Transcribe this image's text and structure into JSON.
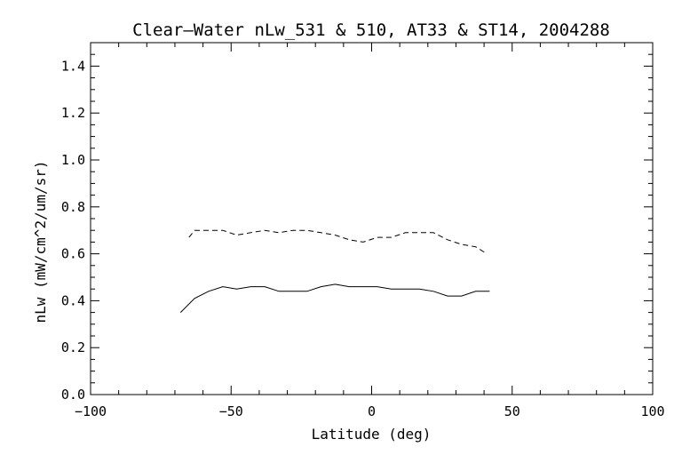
{
  "chart_data": {
    "type": "line",
    "title": "Clear–Water nLw_531 & 510, AT33 & ST14, 2004288",
    "xlabel": "Latitude (deg)",
    "ylabel": "nLw (mW/cm^2/um/sr)",
    "xlim": [
      -100,
      100
    ],
    "ylim": [
      0.0,
      1.5
    ],
    "x_ticks": [
      "−100",
      "−50",
      "0",
      "50",
      "100"
    ],
    "x_tick_values": [
      -100,
      -50,
      0,
      50,
      100
    ],
    "y_ticks": [
      "0.0",
      "0.2",
      "0.4",
      "0.6",
      "0.8",
      "1.0",
      "1.2",
      "1.4"
    ],
    "y_tick_values": [
      0.0,
      0.2,
      0.4,
      0.6,
      0.8,
      1.0,
      1.2,
      1.4
    ],
    "grid": false,
    "series": [
      {
        "style": "dashed",
        "color": "#000000",
        "x": [
          -65,
          -63,
          -58,
          -53,
          -48,
          -43,
          -38,
          -33,
          -28,
          -23,
          -18,
          -13,
          -8,
          -3,
          2,
          7,
          12,
          17,
          22,
          27,
          32,
          37,
          41
        ],
        "y": [
          0.67,
          0.7,
          0.7,
          0.7,
          0.68,
          0.69,
          0.7,
          0.69,
          0.7,
          0.7,
          0.69,
          0.68,
          0.66,
          0.65,
          0.67,
          0.67,
          0.69,
          0.69,
          0.69,
          0.66,
          0.64,
          0.63,
          0.6
        ]
      },
      {
        "style": "solid",
        "color": "#000000",
        "x": [
          -68,
          -63,
          -58,
          -53,
          -48,
          -43,
          -38,
          -33,
          -28,
          -23,
          -18,
          -13,
          -8,
          -3,
          2,
          7,
          12,
          17,
          22,
          27,
          32,
          37,
          42
        ],
        "y": [
          0.35,
          0.41,
          0.44,
          0.46,
          0.45,
          0.46,
          0.46,
          0.44,
          0.44,
          0.44,
          0.46,
          0.47,
          0.46,
          0.46,
          0.46,
          0.45,
          0.45,
          0.45,
          0.44,
          0.42,
          0.42,
          0.44,
          0.44
        ]
      }
    ]
  }
}
